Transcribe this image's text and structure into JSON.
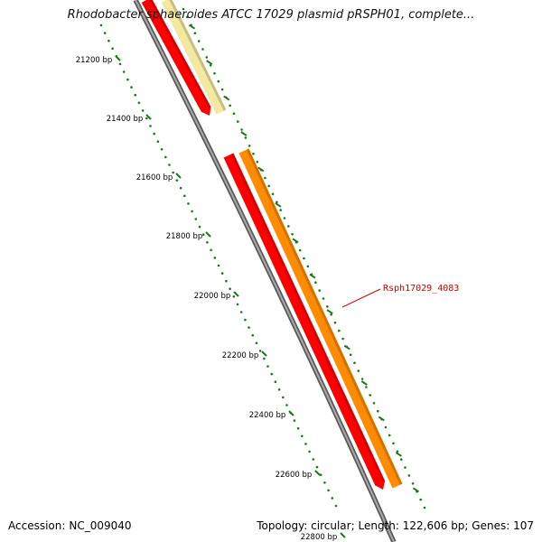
{
  "title": "Rhodobacter sphaeroides ATCC 17029 plasmid pRSPH01, complete...",
  "accession": {
    "label": "Accession:",
    "value": "NC_009040"
  },
  "summary": {
    "topology_label": "Topology:",
    "topology": "circular",
    "length_label": "Length:",
    "length": "122,606 bp",
    "genes_label": "Genes:",
    "genes": "107"
  },
  "scale": {
    "unit": "bp",
    "major_ticks": [
      21200,
      21400,
      21600,
      21800,
      22000,
      22200,
      22400,
      22600,
      22800
    ]
  },
  "features": [
    {
      "id": "gene-red-upper",
      "strand": "+",
      "color": "#ff0000"
    },
    {
      "id": "gene-yellow-upper",
      "strand": "+",
      "color": "#f2e8a0"
    },
    {
      "id": "gene-red-lower",
      "strand": "+",
      "color": "#ff0000"
    },
    {
      "id": "gene-orange-lower",
      "strand": "+",
      "color": "#ff8c00",
      "label": "Rsph17029_4083"
    }
  ],
  "colors": {
    "backbone": "#808080",
    "tick": "#1a7a1a",
    "label_callout": "#cc0000"
  }
}
